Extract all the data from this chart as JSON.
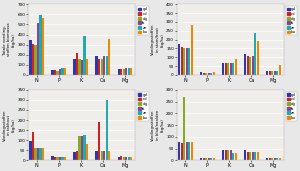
{
  "species": [
    "gd",
    "cd",
    "dg",
    "fs",
    "ze",
    "bu"
  ],
  "colors": [
    "#3333aa",
    "#cc2222",
    "#88aa22",
    "#884499",
    "#22aaaa",
    "#ee8800"
  ],
  "nutrients": [
    "N",
    "P",
    "K",
    "Ca",
    "Mg"
  ],
  "plots": [
    {
      "ylabel": "Totale voeding-\nstoffen biomassa\n(kg/ha)",
      "ylim": [
        0,
        700
      ],
      "yticks": [
        0,
        100,
        200,
        300,
        400,
        500,
        600,
        700
      ],
      "data": {
        "N": [
          350,
          310,
          300,
          510,
          590,
          560
        ],
        "P": [
          50,
          45,
          40,
          55,
          65,
          70
        ],
        "K": [
          160,
          220,
          160,
          150,
          390,
          155
        ],
        "Ca": [
          185,
          160,
          160,
          185,
          185,
          360
        ],
        "Mg": [
          60,
          55,
          55,
          65,
          65,
          65
        ]
      }
    },
    {
      "ylabel": "Voedingsstoffen\nin stam/hout\n(kg/ha)",
      "ylim": [
        0,
        400
      ],
      "yticks": [
        0,
        50,
        100,
        150,
        200,
        250,
        300,
        350,
        400
      ],
      "data": {
        "N": [
          175,
          160,
          155,
          155,
          155,
          280
        ],
        "P": [
          15,
          12,
          10,
          12,
          12,
          18
        ],
        "K": [
          65,
          70,
          65,
          65,
          65,
          90
        ],
        "Ca": [
          120,
          110,
          100,
          110,
          240,
          190
        ],
        "Mg": [
          25,
          20,
          20,
          22,
          22,
          55
        ]
      }
    },
    {
      "ylabel": "Voedingsstoffen\nin takhout\n(kg/ha)",
      "ylim": [
        0,
        350
      ],
      "yticks": [
        0,
        50,
        100,
        150,
        200,
        250,
        300,
        350
      ],
      "data": {
        "N": [
          95,
          140,
          60,
          60,
          60,
          60
        ],
        "P": [
          20,
          18,
          15,
          15,
          15,
          18
        ],
        "K": [
          40,
          45,
          120,
          120,
          125,
          80
        ],
        "Ca": [
          45,
          190,
          45,
          45,
          300,
          45
        ],
        "Mg": [
          18,
          20,
          15,
          15,
          15,
          15
        ]
      }
    },
    {
      "ylabel": "Voedingsstoffen\nin blad/naalden\n(kg/ha)",
      "ylim": [
        0,
        300
      ],
      "yticks": [
        0,
        50,
        100,
        150,
        200,
        250,
        300
      ],
      "data": {
        "N": [
          80,
          75,
          270,
          80,
          80,
          80
        ],
        "P": [
          12,
          10,
          10,
          12,
          12,
          12
        ],
        "K": [
          45,
          45,
          45,
          45,
          30,
          30
        ],
        "Ca": [
          45,
          35,
          35,
          35,
          35,
          35
        ],
        "Mg": [
          12,
          10,
          10,
          10,
          10,
          10
        ]
      }
    }
  ],
  "bg_color": "#e8e8e8",
  "ax_bg_color": "#f0eeea",
  "grid_color": "#ffffff"
}
